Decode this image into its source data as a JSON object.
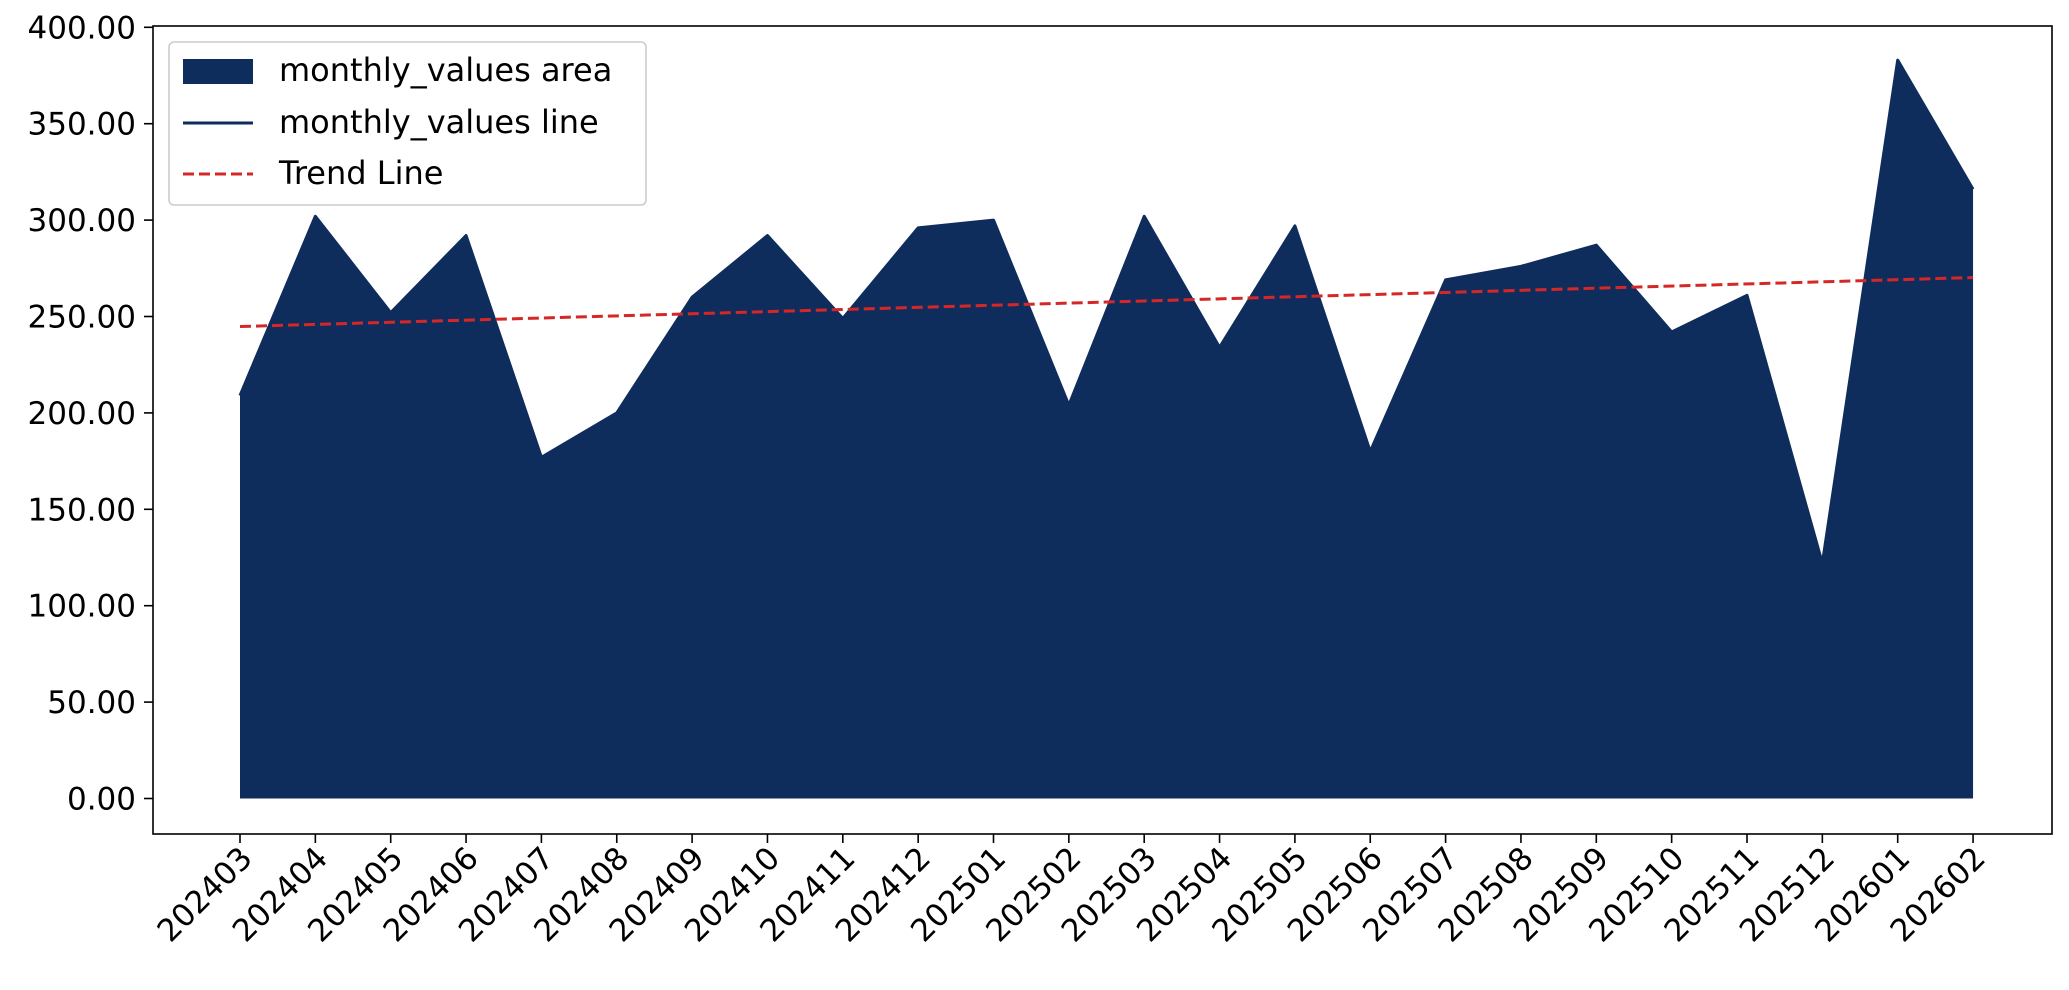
{
  "chart_data": {
    "type": "area",
    "title": "",
    "xlabel": "",
    "ylabel": "",
    "categories": [
      "202403",
      "202404",
      "202405",
      "202406",
      "202407",
      "202408",
      "202409",
      "202410",
      "202411",
      "202412",
      "202501",
      "202502",
      "202503",
      "202504",
      "202505",
      "202506",
      "202507",
      "202508",
      "202509",
      "202510",
      "202511",
      "202512",
      "202601",
      "202602"
    ],
    "series": [
      {
        "name": "monthly_values area",
        "kind": "area",
        "color": "#0f2d5c",
        "values": [
          209,
          302,
          252,
          292,
          177,
          200,
          260,
          292,
          249,
          296,
          300,
          204,
          302,
          234,
          297,
          180,
          269,
          276,
          287,
          242,
          261,
          122,
          383,
          316
        ]
      },
      {
        "name": "monthly_values line",
        "kind": "line",
        "color": "#0f2d5c",
        "values": [
          209,
          302,
          252,
          292,
          177,
          200,
          260,
          292,
          249,
          296,
          300,
          204,
          302,
          234,
          297,
          180,
          269,
          276,
          287,
          242,
          261,
          122,
          383,
          316
        ]
      },
      {
        "name": "Trend Line",
        "kind": "trend",
        "color": "#d62728",
        "start": 244.8,
        "end": 270.2
      }
    ],
    "ylim": [
      -18,
      400
    ],
    "yticks": [
      0,
      50,
      100,
      150,
      200,
      250,
      300,
      350,
      400
    ],
    "ytick_labels": [
      "0.00",
      "50.00",
      "100.00",
      "150.00",
      "200.00",
      "250.00",
      "300.00",
      "350.00",
      "400.00"
    ],
    "grid": false,
    "legend": "top-left"
  }
}
